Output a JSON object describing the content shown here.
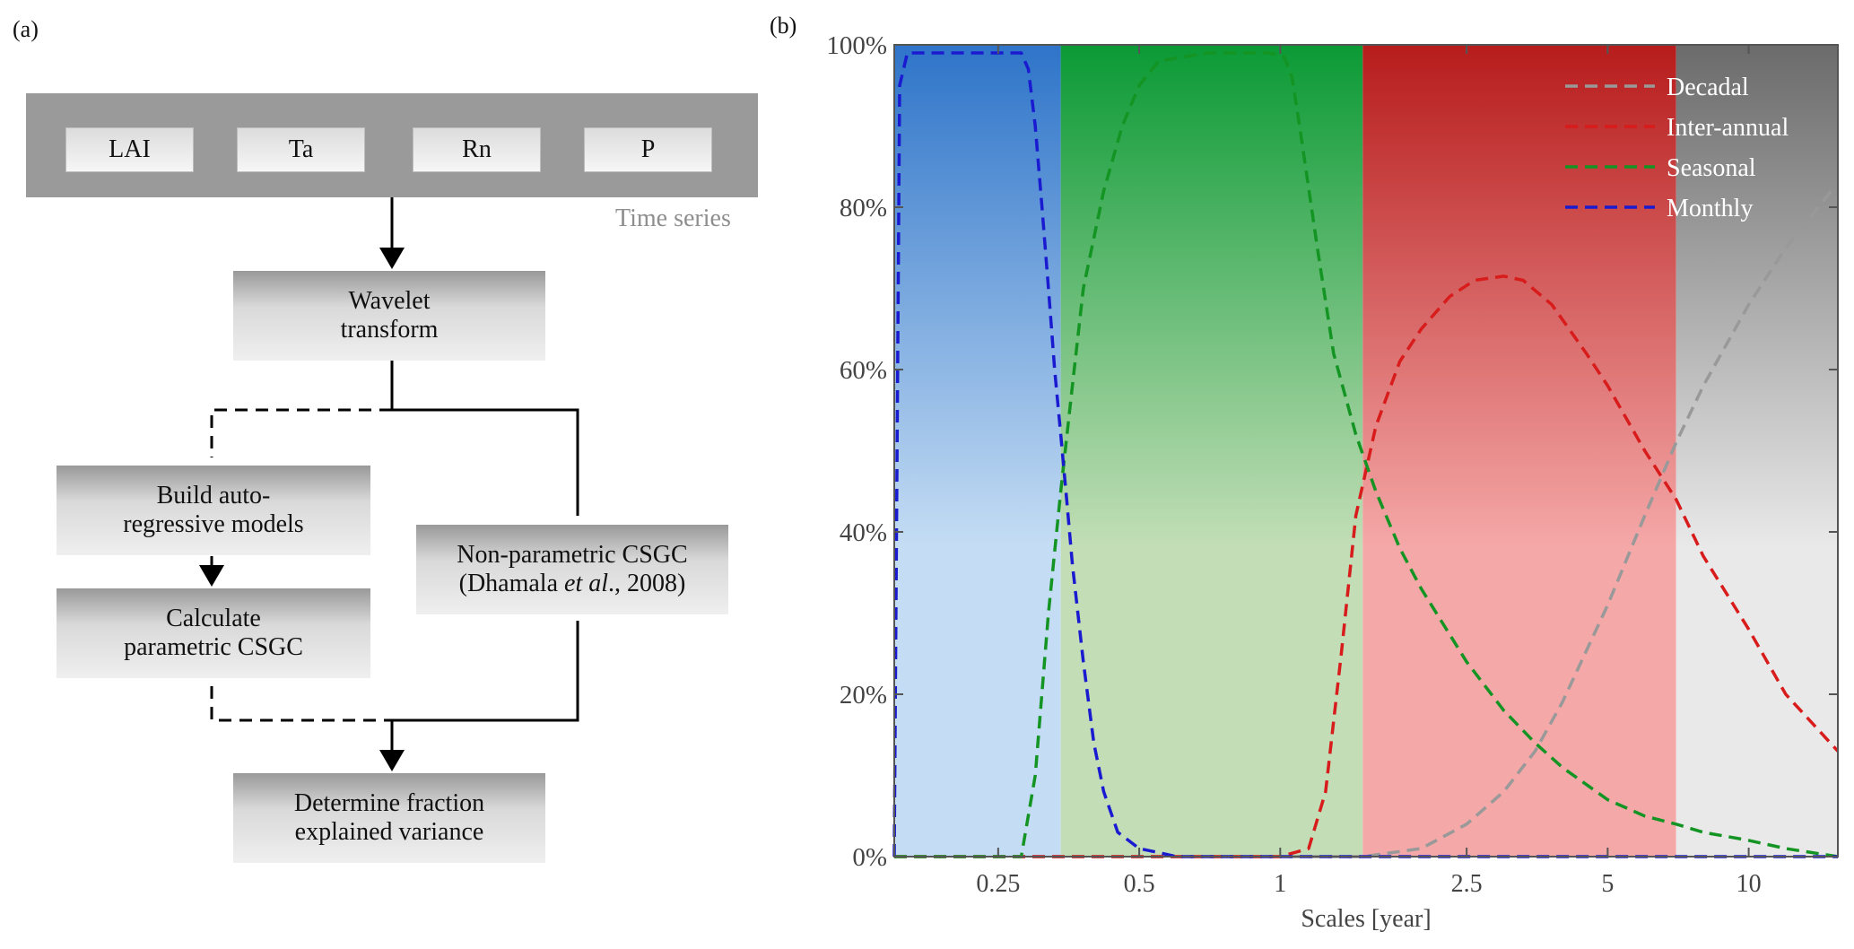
{
  "panel_a": {
    "label": "(a)",
    "variables": [
      "LAI",
      "Ta",
      "Rn",
      "P"
    ],
    "time_series_label": "Time series",
    "wavelet": [
      "Wavelet",
      "transform"
    ],
    "autoregressive": [
      "Build auto-",
      "regressive models"
    ],
    "parametric": [
      "Calculate",
      "parametric CSGC"
    ],
    "nonparametric": {
      "line1": "Non-parametric CSGC",
      "line2_pre": "(Dhamala ",
      "line2_italic": "et al",
      "line2_post": "., 2008)"
    },
    "final": [
      "Determine fraction",
      "explained variance"
    ]
  },
  "panel_b": {
    "label": "(b)"
  },
  "chart_data": {
    "type": "line",
    "xlabel": "Scales [year]",
    "ylabel": "",
    "x_scale": "log",
    "xlim": [
      0.15,
      15.5
    ],
    "ylim": [
      0,
      100
    ],
    "x_ticks": [
      0.25,
      0.5,
      1,
      2.5,
      5,
      10
    ],
    "x_tick_labels": [
      "0.25",
      "0.5",
      "1",
      "2.5",
      "5",
      "10"
    ],
    "y_ticks": [
      0,
      20,
      40,
      60,
      80,
      100
    ],
    "y_tick_labels": [
      "0%",
      "20%",
      "40%",
      "60%",
      "80%",
      "100%"
    ],
    "grid": false,
    "legend_position": "top-right",
    "bands": [
      {
        "from": 0.15,
        "to": 0.34,
        "color": "#2e74c9",
        "light": "#c5ddf4"
      },
      {
        "from": 0.34,
        "to": 1.5,
        "color": "#0b9a35",
        "light": "#c3deb7"
      },
      {
        "from": 1.5,
        "to": 7.0,
        "color": "#b71c1c",
        "light": "#f5a8a8"
      },
      {
        "from": 7.0,
        "to": 15.5,
        "color": "#6b6b6b",
        "light": "#e9e9e9"
      }
    ],
    "series": [
      {
        "name": "Decadal",
        "color": "#999999",
        "x": [
          0.15,
          1.5,
          2.0,
          2.5,
          3.0,
          3.5,
          4.0,
          5.0,
          6.0,
          7.0,
          8.0,
          10.0,
          12.0,
          15.0
        ],
        "y": [
          0,
          0,
          1,
          4,
          8,
          13,
          19,
          31,
          42,
          51,
          58,
          68,
          75,
          82
        ]
      },
      {
        "name": "Inter-annual",
        "color": "#d81b1b",
        "x": [
          0.15,
          1.0,
          1.15,
          1.25,
          1.35,
          1.45,
          1.6,
          1.8,
          2.0,
          2.3,
          2.6,
          3.0,
          3.3,
          3.8,
          4.5,
          5.0,
          6.0,
          7.0,
          8.0,
          10.0,
          12.0,
          15.5
        ],
        "y": [
          0,
          0,
          1,
          8,
          25,
          42,
          53,
          61,
          65,
          69,
          71,
          71.5,
          71,
          68,
          62,
          58,
          50,
          44,
          37,
          28,
          20,
          13
        ]
      },
      {
        "name": "Seasonal",
        "color": "#139423",
        "x": [
          0.15,
          0.28,
          0.3,
          0.32,
          0.34,
          0.36,
          0.38,
          0.42,
          0.46,
          0.5,
          0.55,
          0.7,
          0.85,
          0.95,
          1.02,
          1.06,
          1.1,
          1.2,
          1.3,
          1.45,
          1.6,
          1.8,
          2.0,
          2.5,
          3.0,
          3.5,
          4.0,
          5.0,
          6.0,
          7.0,
          8.0,
          10.0,
          12.0,
          15.5
        ],
        "y": [
          0,
          0,
          10,
          30,
          45,
          58,
          70,
          82,
          90,
          95,
          98,
          99,
          99,
          99,
          98.5,
          96,
          90,
          75,
          62,
          52,
          45,
          38,
          33,
          24,
          18,
          14,
          11,
          7,
          5,
          4,
          3,
          2,
          1,
          0
        ]
      },
      {
        "name": "Monthly",
        "color": "#1a1ad1",
        "x": [
          0.15,
          0.154,
          0.16,
          0.2,
          0.25,
          0.28,
          0.29,
          0.3,
          0.31,
          0.32,
          0.33,
          0.34,
          0.35,
          0.36,
          0.38,
          0.4,
          0.42,
          0.45,
          0.5,
          0.55,
          0.6,
          1.0,
          15.5
        ],
        "y": [
          0,
          95,
          99,
          99,
          99,
          99,
          97,
          90,
          80,
          70,
          60,
          52,
          44,
          36,
          24,
          14,
          8,
          3,
          1,
          0.5,
          0,
          0,
          0
        ]
      }
    ]
  }
}
